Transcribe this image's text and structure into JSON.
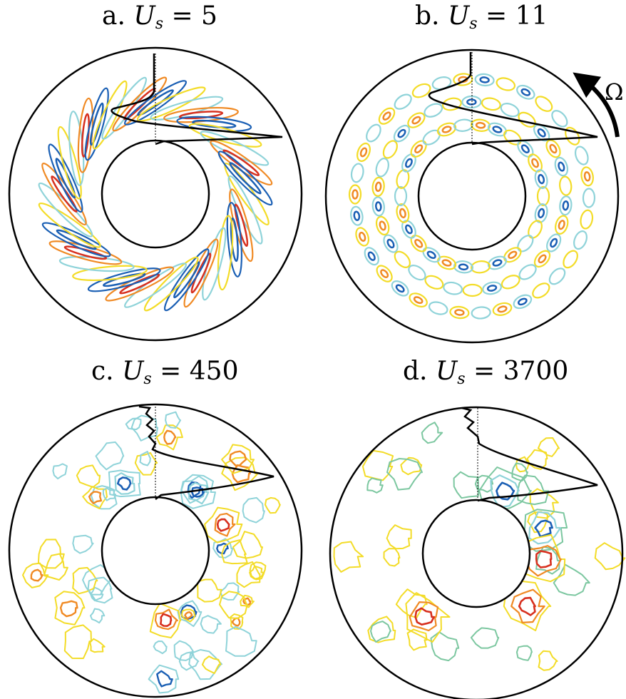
{
  "panels": [
    {
      "letter": "a.",
      "symbol": "U",
      "sub": "s",
      "eq": "= 5"
    },
    {
      "letter": "b.",
      "symbol": "U",
      "sub": "s",
      "eq": "= 11"
    },
    {
      "letter": "c.",
      "symbol": "U",
      "sub": "s",
      "eq": "= 450"
    },
    {
      "letter": "d.",
      "symbol": "U",
      "sub": "s",
      "eq": "= 3700"
    }
  ],
  "rotation_label": "Ω",
  "colors": {
    "dark_blue": "#1a5fb4",
    "light_blue": "#8fd3d9",
    "yellow": "#f3dc28",
    "orange": "#f08a24",
    "red": "#d7301f",
    "green": "#7cc7a0",
    "outline": "#000000"
  }
}
